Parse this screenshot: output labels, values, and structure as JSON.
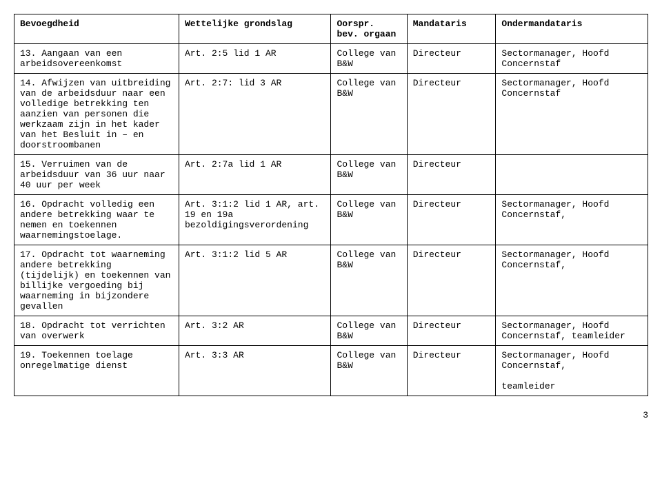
{
  "table": {
    "columns": [
      "Bevoegdheid",
      "Wettelijke grondslag",
      "Oorspr. bev. orgaan",
      "Mandataris",
      "Ondermandataris"
    ],
    "rows": [
      {
        "c1": "13. Aangaan van een arbeidsovereenkomst",
        "c2": "Art. 2:5 lid 1 AR",
        "c3": "College van B&W",
        "c4": "Directeur",
        "c5": "Sectormanager, Hoofd Concernstaf"
      },
      {
        "c1": "14. Afwijzen van uitbreiding van de arbeidsduur naar een volledige betrekking ten aanzien van personen die werkzaam zijn in het kader van het Besluit in – en doorstroombanen",
        "c2": "Art. 2:7: lid 3 AR",
        "c3": "College van B&W",
        "c4": "Directeur",
        "c5": "Sectormanager, Hoofd Concernstaf"
      },
      {
        "c1": "15. Verruimen van de arbeidsduur van 36 uur naar 40 uur per week",
        "c2": "Art. 2:7a lid 1 AR",
        "c3": "College van B&W",
        "c4": "Directeur",
        "c5": ""
      },
      {
        "c1": "16. Opdracht volledig een andere betrekking waar te nemen en toekennen waarnemingstoelage.",
        "c2": "Art. 3:1:2 lid 1 AR, art. 19 en 19a bezoldigingsverordening",
        "c3": "College van B&W",
        "c4": "Directeur",
        "c5": "Sectormanager, Hoofd Concernstaf,"
      },
      {
        "c1": "17. Opdracht tot waarneming andere betrekking (tijdelijk) en toekennen van billijke vergoeding bij waarneming in bijzondere gevallen",
        "c2": "Art. 3:1:2 lid 5 AR",
        "c3": "College van B&W",
        "c4": "Directeur",
        "c5": "Sectormanager, Hoofd Concernstaf,"
      },
      {
        "c1": "18. Opdracht tot verrichten van overwerk",
        "c2": "Art. 3:2 AR",
        "c3": "College van B&W",
        "c4": "Directeur",
        "c5": "Sectormanager, Hoofd Concernstaf, teamleider"
      },
      {
        "c1": "19. Toekennen toelage onregelmatige dienst",
        "c2": "Art. 3:3 AR",
        "c3": "College van B&W",
        "c4": "Directeur",
        "c5": "Sectormanager, Hoofd Concernstaf,\n\nteamleider"
      }
    ]
  },
  "page_number": "3",
  "style": {
    "font_family": "Courier New",
    "font_size_pt": 10,
    "text_color": "#000000",
    "background_color": "#ffffff",
    "border_color": "#000000"
  }
}
